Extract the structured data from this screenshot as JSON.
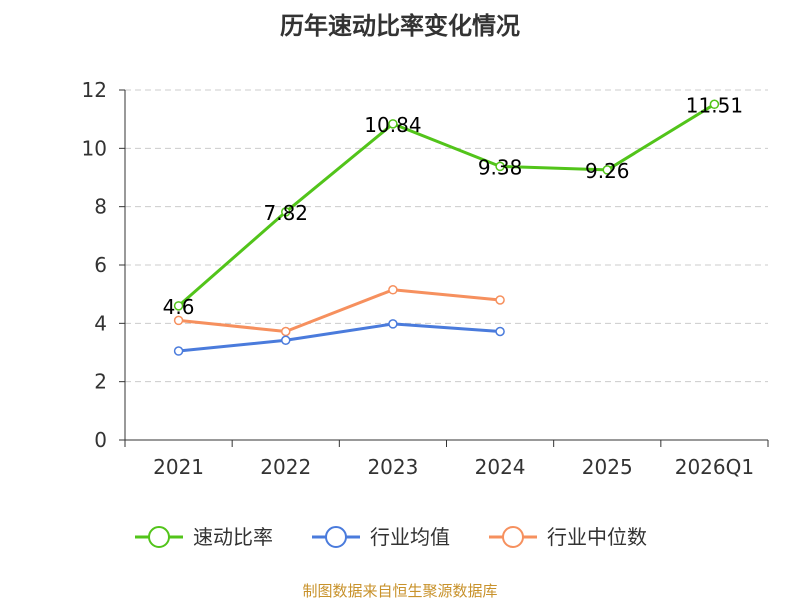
{
  "chart_data": {
    "type": "line",
    "title": "历年速动比率变化情况",
    "categories": [
      "2021",
      "2022",
      "2023",
      "2024",
      "2025",
      "2026Q1"
    ],
    "ylim": [
      0,
      12
    ],
    "yticks": [
      "0",
      "2",
      "4",
      "6",
      "8",
      "10",
      "12"
    ],
    "grid": true,
    "legend_position": "bottom",
    "series": [
      {
        "name": "速动比率",
        "color": "#52c41a",
        "values": [
          4.6,
          7.82,
          10.84,
          9.38,
          9.26,
          11.51
        ],
        "labels": [
          "4.6",
          "7.82",
          "10.84",
          "9.38",
          "9.26",
          "11.51"
        ]
      },
      {
        "name": "行业均值",
        "color": "#4a7bdc",
        "values": [
          3.05,
          3.42,
          3.98,
          3.72,
          null,
          null
        ],
        "labels": []
      },
      {
        "name": "行业中位数",
        "color": "#f6905e",
        "values": [
          4.1,
          3.72,
          5.15,
          4.8,
          null,
          null
        ],
        "labels": []
      }
    ],
    "source": "制图数据来自恒生聚源数据库"
  }
}
